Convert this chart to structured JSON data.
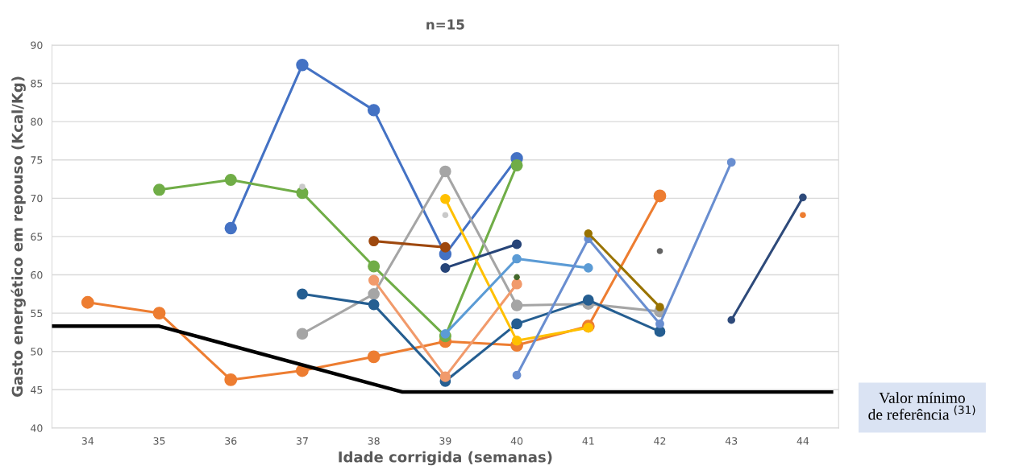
{
  "chart_data": {
    "type": "line",
    "title": "n=15",
    "xlabel": "Idade corrigida (semanas)",
    "ylabel": "Gasto energético em repouso (Kcal/Kg)",
    "xlim": [
      33.5,
      44.5
    ],
    "xticks": [
      34,
      35,
      36,
      37,
      38,
      39,
      40,
      41,
      42,
      43,
      44
    ],
    "ylim": [
      40,
      90
    ],
    "yticks": [
      40,
      45,
      50,
      55,
      60,
      65,
      70,
      75,
      80,
      85,
      90
    ],
    "grid": "y",
    "legend": false,
    "marker": "circle",
    "line_style": "solid",
    "series": [
      {
        "color": "#ed7d31",
        "x": [
          34,
          35,
          36,
          37,
          38,
          39,
          40,
          41,
          42
        ],
        "values": [
          56.4,
          55.0,
          46.3,
          47.5,
          49.3,
          51.3,
          50.8,
          53.3,
          70.3
        ]
      },
      {
        "color": "#4472c4",
        "x": [
          36,
          37,
          38,
          39,
          40
        ],
        "values": [
          66.1,
          87.4,
          81.5,
          62.7,
          75.2
        ]
      },
      {
        "color": "#70ad47",
        "x": [
          35,
          36,
          37,
          38,
          39,
          40
        ],
        "values": [
          71.1,
          72.4,
          70.7,
          61.1,
          52.0,
          74.3
        ]
      },
      {
        "color": "#a5a5a5",
        "x": [
          37,
          38,
          39,
          40,
          41,
          42
        ],
        "values": [
          52.3,
          57.5,
          73.5,
          56.0,
          56.2,
          55.2
        ]
      },
      {
        "type": "scatter",
        "color": "#c9c9c9",
        "x": [
          37,
          39
        ],
        "values": [
          71.5,
          67.8
        ]
      },
      {
        "color": "#255e91",
        "x": [
          37,
          38,
          39,
          40,
          41,
          42
        ],
        "values": [
          57.5,
          56.1,
          46.1,
          53.6,
          56.7,
          52.6
        ]
      },
      {
        "color": "#f19a6b",
        "x": [
          38,
          39,
          40
        ],
        "values": [
          59.3,
          46.7,
          58.8
        ]
      },
      {
        "color": "#9e480e",
        "x": [
          38,
          39
        ],
        "values": [
          64.4,
          63.6
        ]
      },
      {
        "color": "#ffc000",
        "x": [
          39,
          40,
          41
        ],
        "values": [
          69.9,
          51.4,
          53.1
        ]
      },
      {
        "color": "#264478",
        "x": [
          39,
          40
        ],
        "values": [
          60.9,
          64.0
        ]
      },
      {
        "color": "#5b9bd5",
        "x": [
          39,
          40,
          41
        ],
        "values": [
          52.3,
          62.1,
          60.9
        ]
      },
      {
        "type": "scatter",
        "color": "#43682b",
        "x": [
          40
        ],
        "values": [
          59.7
        ]
      },
      {
        "color": "#698ed0",
        "x": [
          40,
          41,
          42,
          43
        ],
        "values": [
          46.9,
          64.7,
          53.6,
          74.7
        ]
      },
      {
        "color": "#997300",
        "x": [
          41,
          42
        ],
        "values": [
          65.4,
          55.8
        ]
      },
      {
        "type": "scatter",
        "color": "#636363",
        "x": [
          42
        ],
        "values": [
          63.1
        ]
      },
      {
        "color": "#2e4a7a",
        "x": [
          43,
          44
        ],
        "values": [
          54.1,
          70.1
        ]
      },
      {
        "type": "scatter",
        "color": "#ed7d31",
        "x": [
          44
        ],
        "values": [
          67.8
        ]
      },
      {
        "name": "Valor mínimo\nde referência $^{(31)}$",
        "color": "#000000",
        "marker": "none",
        "x": [
          33.5,
          35,
          38.4,
          44.4
        ],
        "values": [
          53.3,
          53.3,
          44.7,
          44.7
        ]
      }
    ]
  }
}
